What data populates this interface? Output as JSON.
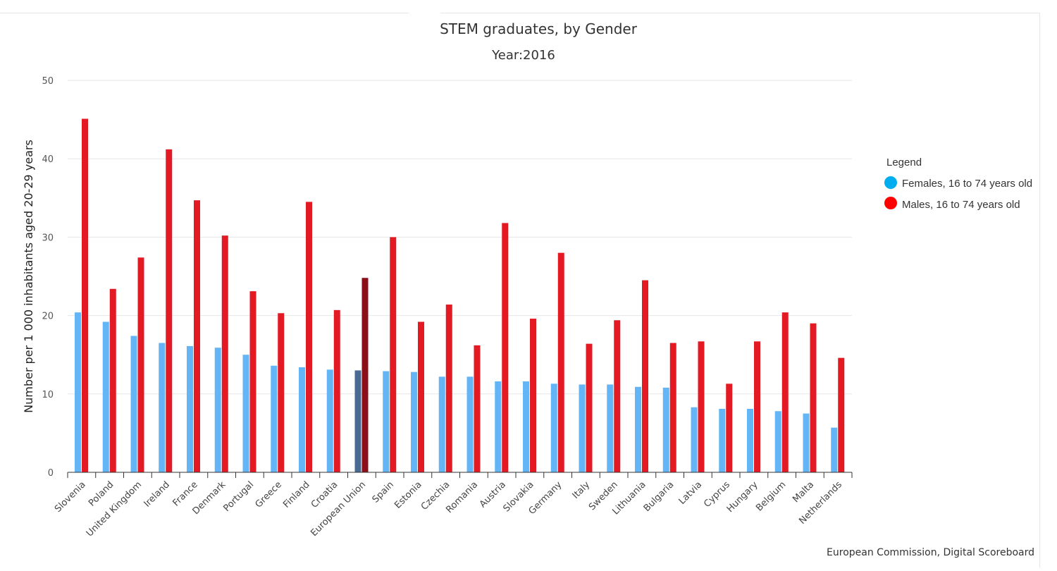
{
  "chart_data": {
    "type": "bar",
    "title": "STEM graduates, by Gender",
    "subtitle": "Year:2016",
    "xlabel": "",
    "ylabel": "Number per 1 000 inhabitants aged 20-29 years",
    "ylim": [
      0,
      50
    ],
    "yticks": [
      0,
      10,
      20,
      30,
      40,
      50
    ],
    "grid": true,
    "legend_title": "Legend",
    "legend_position": "right",
    "credit": "European Commission, Digital Scoreboard",
    "highlight_category": "European Union",
    "categories": [
      "Slovenia",
      "Poland",
      "United Kingdom",
      "Ireland",
      "France",
      "Denmark",
      "Portugal",
      "Greece",
      "Finland",
      "Croatia",
      "European Union",
      "Spain",
      "Estonia",
      "Czechia",
      "Romania",
      "Austria",
      "Slovakia",
      "Germany",
      "Italy",
      "Sweden",
      "Lithuania",
      "Bulgaria",
      "Latvia",
      "Cyprus",
      "Hungary",
      "Belgium",
      "Malta",
      "Netherlands"
    ],
    "series": [
      {
        "name": "Females, 16 to 74 years old",
        "legend_color": "#00aef0",
        "color": "#64b5f6",
        "highlight_color": "#4a6a93",
        "values": [
          20.4,
          19.2,
          17.4,
          16.5,
          16.1,
          15.9,
          15.0,
          13.6,
          13.4,
          13.1,
          13.0,
          12.9,
          12.8,
          12.2,
          12.2,
          11.6,
          11.6,
          11.3,
          11.2,
          11.2,
          10.9,
          10.8,
          8.3,
          8.1,
          8.1,
          7.8,
          7.5,
          5.7
        ]
      },
      {
        "name": "Males, 16 to 74 years old",
        "legend_color": "#ff0000",
        "color": "#e31a24",
        "highlight_color": "#8b0f18",
        "values": [
          45.1,
          23.4,
          27.4,
          41.2,
          34.7,
          30.2,
          23.1,
          20.3,
          34.5,
          20.7,
          24.8,
          30.0,
          19.2,
          21.4,
          16.2,
          31.8,
          19.6,
          28.0,
          16.4,
          19.4,
          24.5,
          16.5,
          16.7,
          11.3,
          16.7,
          20.4,
          19.0,
          14.6
        ]
      }
    ]
  }
}
